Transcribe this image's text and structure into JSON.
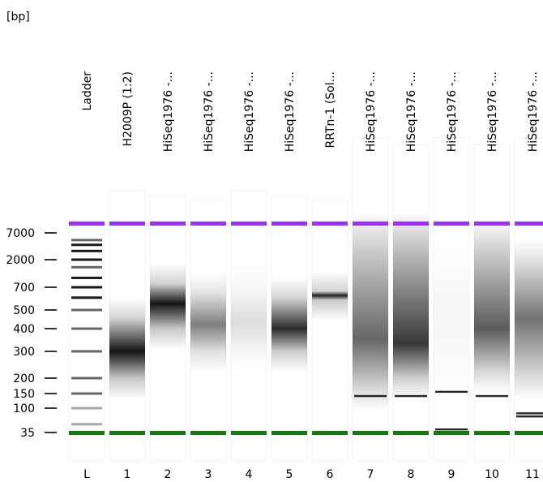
{
  "unit_label": "[bp]",
  "colors": {
    "upper_marker": "#9b30ff",
    "lower_marker": "#0e7d0e",
    "band": "#000000",
    "lane_bg": "#ffffff"
  },
  "size_axis": [
    "7000",
    "2000",
    "700",
    "500",
    "400",
    "300",
    "200",
    "150",
    "100",
    "35"
  ],
  "ladder": {
    "label": "Ladder",
    "number": "L",
    "bands_bp": [
      7000,
      5000,
      4000,
      3000,
      2000,
      1500,
      1000,
      700,
      600,
      500,
      400,
      300,
      200,
      150,
      100,
      50,
      35
    ]
  },
  "lanes": [
    {
      "number": "1",
      "label": "H2009P (1:2)",
      "smear": {
        "peak_bp": 300,
        "lo_bp": 200,
        "hi_bp": 450,
        "intensity": 1.0
      },
      "bands_bp": []
    },
    {
      "number": "2",
      "label": "HiSeq1976 -...",
      "smear": {
        "peak_bp": 550,
        "lo_bp": 400,
        "hi_bp": 800,
        "intensity": 1.0
      },
      "bands_bp": []
    },
    {
      "number": "3",
      "label": "HiSeq1976 -...",
      "smear": {
        "peak_bp": 420,
        "lo_bp": 300,
        "hi_bp": 650,
        "intensity": 0.55
      },
      "bands_bp": []
    },
    {
      "number": "4",
      "label": "HiSeq1976 -...",
      "smear": {
        "peak_bp": 430,
        "lo_bp": 300,
        "hi_bp": 700,
        "intensity": 0.15
      },
      "bands_bp": []
    },
    {
      "number": "5",
      "label": "HiSeq1976 -...",
      "smear": {
        "peak_bp": 400,
        "lo_bp": 300,
        "hi_bp": 600,
        "intensity": 0.9
      },
      "bands_bp": []
    },
    {
      "number": "6",
      "label": "RRTn-1 (Sol...",
      "smear": {
        "peak_bp": 620,
        "lo_bp": 580,
        "hi_bp": 660,
        "intensity": 0.95
      },
      "bands_bp": []
    },
    {
      "number": "7",
      "label": "HiSeq1976 -...",
      "smear": {
        "peak_bp": 350,
        "lo_bp": 160,
        "hi_bp": 7000,
        "intensity": 0.65
      },
      "bands_bp": [
        140
      ]
    },
    {
      "number": "8",
      "label": "HiSeq1976 -...",
      "smear": {
        "peak_bp": 330,
        "lo_bp": 200,
        "hi_bp": 7000,
        "intensity": 0.85
      },
      "bands_bp": [
        140
      ]
    },
    {
      "number": "9",
      "label": "HiSeq1976 -...",
      "smear": {
        "peak_bp": 500,
        "lo_bp": 200,
        "hi_bp": 2000,
        "intensity": 0.04
      },
      "bands_bp": [
        155,
        40
      ]
    },
    {
      "number": "10",
      "label": "HiSeq1976 -...",
      "smear": {
        "peak_bp": 400,
        "lo_bp": 220,
        "hi_bp": 5000,
        "intensity": 0.7
      },
      "bands_bp": [
        140
      ]
    },
    {
      "number": "11",
      "label": "HiSeq1976 -...",
      "smear": {
        "peak_bp": 450,
        "lo_bp": 200,
        "hi_bp": 2000,
        "intensity": 0.6
      },
      "bands_bp": [
        80,
        70
      ]
    }
  ]
}
